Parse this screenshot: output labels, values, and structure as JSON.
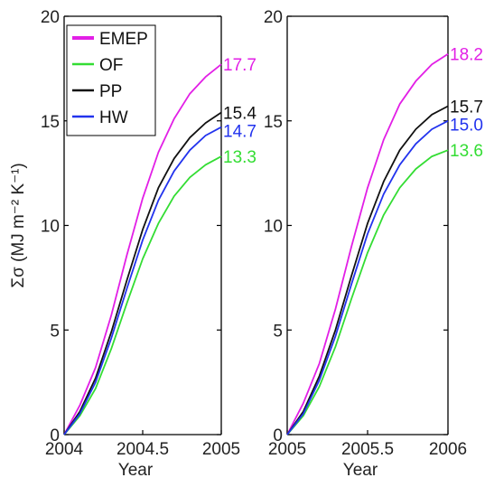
{
  "chart_data": [
    {
      "type": "line",
      "xlabel": "Year",
      "ylabel": "Σσ (MJ m⁻² K⁻¹)",
      "xlim": [
        2004,
        2005
      ],
      "ylim": [
        0,
        20
      ],
      "x_ticks": [
        2004,
        2004.5,
        2005
      ],
      "x_tick_labels": [
        "2004",
        "2004.5",
        "2005"
      ],
      "y_ticks": [
        0,
        5,
        10,
        15,
        20
      ],
      "y_tick_labels": [
        "0",
        "5",
        "10",
        "15",
        "20"
      ],
      "legend": {
        "position": "top-left",
        "entries": [
          "EMEP",
          "OF",
          "PP",
          "HW"
        ]
      },
      "x": [
        2004,
        2004.1,
        2004.2,
        2004.3,
        2004.4,
        2004.5,
        2004.6,
        2004.7,
        2004.8,
        2004.9,
        2005
      ],
      "series": [
        {
          "name": "EMEP",
          "color": "#e21fe6",
          "end_label": "17.7",
          "values": [
            0,
            1.4,
            3.2,
            5.7,
            8.6,
            11.3,
            13.5,
            15.1,
            16.3,
            17.1,
            17.7
          ]
        },
        {
          "name": "OF",
          "color": "#33dd33",
          "end_label": "13.3",
          "values": [
            0,
            0.9,
            2.2,
            4.1,
            6.3,
            8.4,
            10.1,
            11.4,
            12.3,
            12.9,
            13.3
          ]
        },
        {
          "name": "PP",
          "color": "#111111",
          "end_label": "15.4",
          "values": [
            0,
            1.1,
            2.7,
            4.9,
            7.4,
            9.8,
            11.8,
            13.2,
            14.2,
            14.9,
            15.4
          ]
        },
        {
          "name": "HW",
          "color": "#2233ee",
          "end_label": "14.7",
          "values": [
            0,
            1.0,
            2.5,
            4.6,
            7.0,
            9.3,
            11.2,
            12.6,
            13.6,
            14.3,
            14.7
          ]
        }
      ]
    },
    {
      "type": "line",
      "xlabel": "Year",
      "ylabel": "",
      "xlim": [
        2005,
        2006
      ],
      "ylim": [
        0,
        20
      ],
      "x_ticks": [
        2005,
        2005.5,
        2006
      ],
      "x_tick_labels": [
        "2005",
        "2005.5",
        "2006"
      ],
      "y_ticks": [
        0,
        5,
        10,
        15,
        20
      ],
      "y_tick_labels": [
        "0",
        "5",
        "10",
        "15",
        "20"
      ],
      "x": [
        2005,
        2005.1,
        2005.2,
        2005.3,
        2005.4,
        2005.5,
        2005.6,
        2005.7,
        2005.8,
        2005.9,
        2006
      ],
      "series": [
        {
          "name": "EMEP",
          "color": "#e21fe6",
          "end_label": "18.2",
          "values": [
            0,
            1.5,
            3.4,
            6.0,
            9.0,
            11.8,
            14.1,
            15.8,
            16.9,
            17.7,
            18.2
          ]
        },
        {
          "name": "OF",
          "color": "#33dd33",
          "end_label": "13.6",
          "values": [
            0,
            0.9,
            2.3,
            4.2,
            6.5,
            8.7,
            10.5,
            11.8,
            12.7,
            13.3,
            13.6
          ]
        },
        {
          "name": "PP",
          "color": "#111111",
          "end_label": "15.7",
          "values": [
            0,
            1.1,
            2.8,
            5.0,
            7.6,
            10.1,
            12.1,
            13.6,
            14.6,
            15.3,
            15.7
          ]
        },
        {
          "name": "HW",
          "color": "#2233ee",
          "end_label": "15.0",
          "values": [
            0,
            1.0,
            2.6,
            4.7,
            7.2,
            9.6,
            11.5,
            12.9,
            13.9,
            14.6,
            15.0
          ]
        }
      ]
    }
  ]
}
